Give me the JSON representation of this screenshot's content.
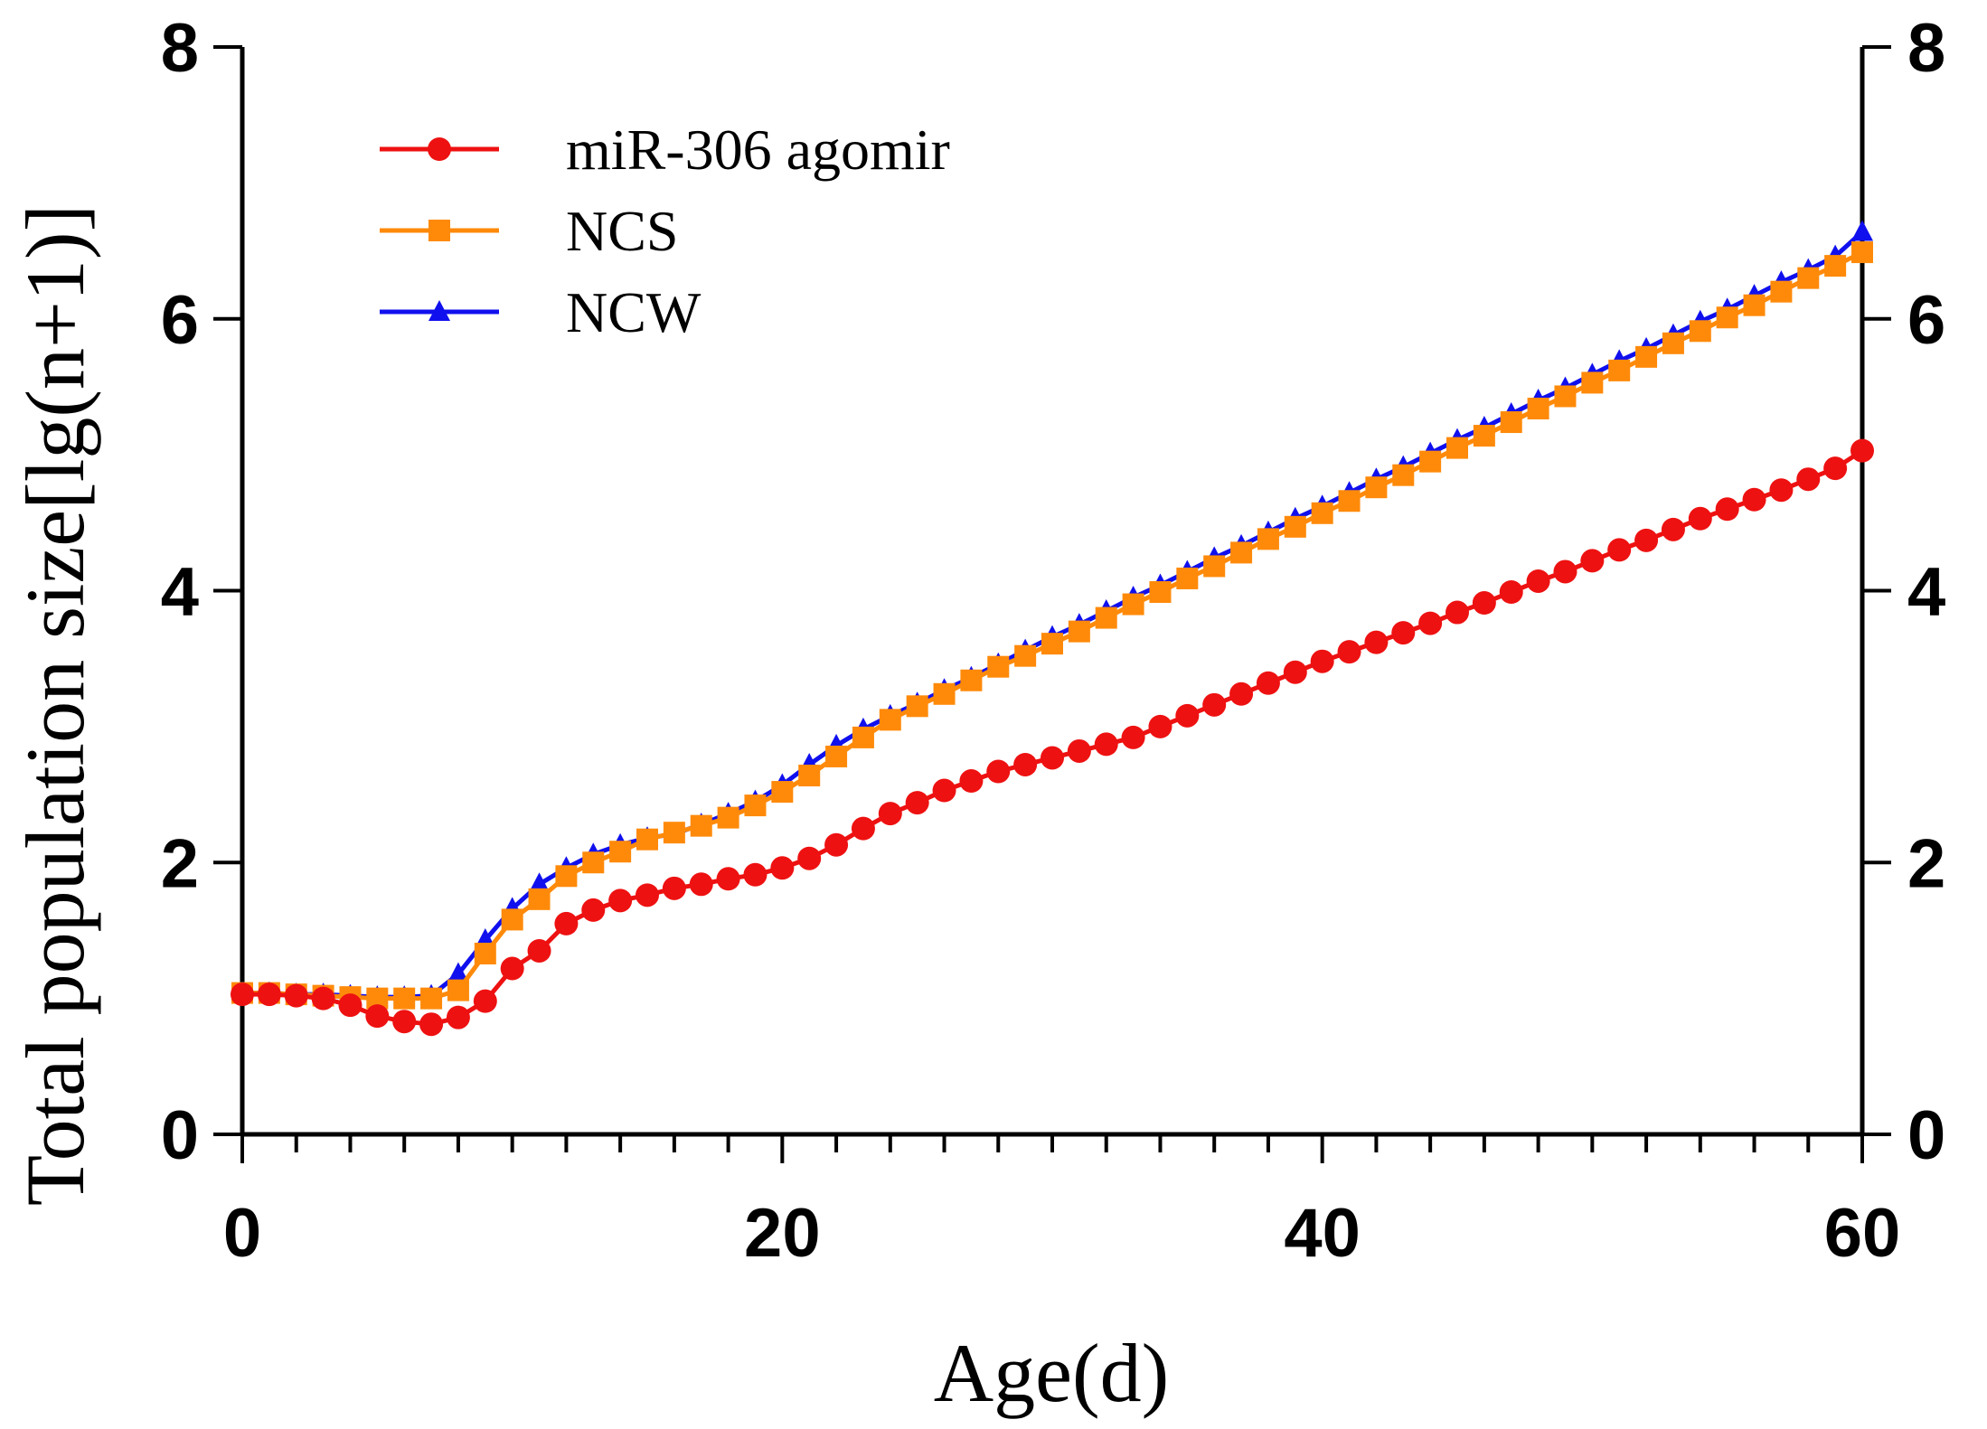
{
  "chart_data": {
    "type": "line",
    "title": "",
    "xlabel": "Age(d)",
    "ylabel": "Total population size[lg(n+1)]",
    "xlim": [
      0,
      60
    ],
    "ylim": [
      0,
      8
    ],
    "xticks": [
      0,
      20,
      40,
      60
    ],
    "yticks": [
      0,
      2,
      4,
      6,
      8
    ],
    "x_minor_step": 2,
    "x": [
      0,
      1,
      2,
      3,
      4,
      5,
      6,
      7,
      8,
      9,
      10,
      11,
      12,
      13,
      14,
      15,
      16,
      17,
      18,
      19,
      20,
      21,
      22,
      23,
      24,
      25,
      26,
      27,
      28,
      29,
      30,
      31,
      32,
      33,
      34,
      35,
      36,
      37,
      38,
      39,
      40,
      41,
      42,
      43,
      44,
      45,
      46,
      47,
      48,
      49,
      50,
      51,
      52,
      53,
      54,
      55,
      56,
      57,
      58,
      59,
      60
    ],
    "series": [
      {
        "name": "NCW",
        "color": "#1010ee",
        "marker": "triangle",
        "values": [
          1.04,
          1.04,
          1.03,
          1.03,
          1.02,
          1.01,
          1.01,
          1.02,
          1.18,
          1.43,
          1.66,
          1.84,
          1.96,
          2.06,
          2.13,
          2.18,
          2.21,
          2.28,
          2.36,
          2.45,
          2.57,
          2.72,
          2.86,
          2.98,
          3.08,
          3.17,
          3.27,
          3.36,
          3.46,
          3.56,
          3.66,
          3.75,
          3.85,
          3.95,
          4.04,
          4.14,
          4.24,
          4.33,
          4.43,
          4.53,
          4.62,
          4.72,
          4.82,
          4.91,
          5.01,
          5.11,
          5.2,
          5.3,
          5.4,
          5.49,
          5.59,
          5.69,
          5.78,
          5.88,
          5.98,
          6.07,
          6.17,
          6.27,
          6.36,
          6.46,
          6.64
        ]
      },
      {
        "name": "NCS",
        "color": "#ff8a0a",
        "marker": "square",
        "values": [
          1.04,
          1.04,
          1.03,
          1.02,
          1.01,
          1.0,
          1.0,
          1.0,
          1.06,
          1.33,
          1.58,
          1.73,
          1.9,
          2.0,
          2.08,
          2.17,
          2.22,
          2.27,
          2.33,
          2.42,
          2.52,
          2.64,
          2.78,
          2.92,
          3.05,
          3.15,
          3.24,
          3.34,
          3.44,
          3.52,
          3.61,
          3.7,
          3.8,
          3.9,
          3.99,
          4.09,
          4.18,
          4.28,
          4.38,
          4.47,
          4.57,
          4.66,
          4.76,
          4.85,
          4.95,
          5.05,
          5.14,
          5.24,
          5.34,
          5.43,
          5.53,
          5.62,
          5.72,
          5.82,
          5.91,
          6.01,
          6.1,
          6.2,
          6.3,
          6.39,
          6.49
        ]
      },
      {
        "name": "miR-306 agomir",
        "color": "#ee1111",
        "marker": "circle",
        "values": [
          1.03,
          1.03,
          1.02,
          1.0,
          0.95,
          0.87,
          0.83,
          0.81,
          0.86,
          0.98,
          1.22,
          1.35,
          1.55,
          1.65,
          1.72,
          1.76,
          1.81,
          1.84,
          1.88,
          1.91,
          1.96,
          2.03,
          2.13,
          2.25,
          2.36,
          2.44,
          2.53,
          2.6,
          2.67,
          2.72,
          2.77,
          2.82,
          2.87,
          2.92,
          3.0,
          3.08,
          3.16,
          3.24,
          3.32,
          3.4,
          3.48,
          3.55,
          3.62,
          3.69,
          3.76,
          3.84,
          3.91,
          3.99,
          4.07,
          4.14,
          4.22,
          4.3,
          4.37,
          4.45,
          4.53,
          4.6,
          4.67,
          4.74,
          4.82,
          4.9,
          5.03
        ]
      }
    ],
    "legend": {
      "placement": "top-left",
      "order": [
        "miR-306 agomir",
        "NCS",
        "NCW"
      ]
    },
    "grid": false
  }
}
